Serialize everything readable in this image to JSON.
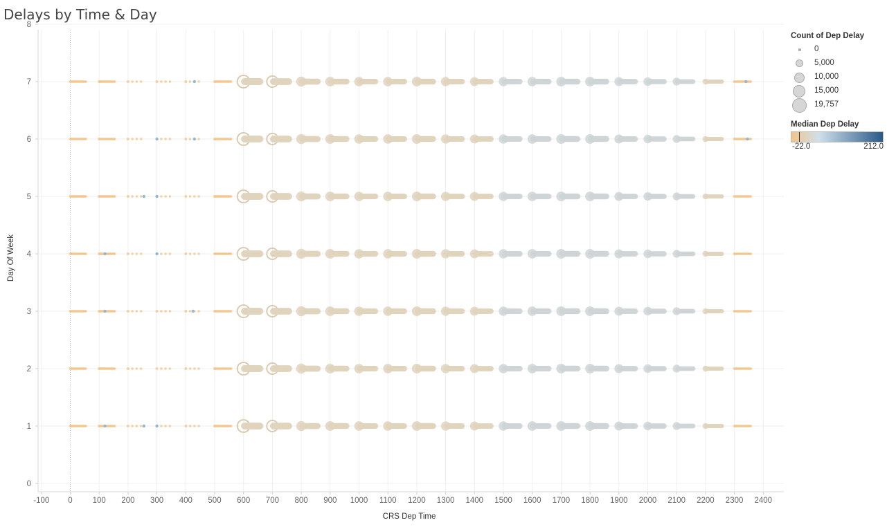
{
  "title": "Delays by Time & Day",
  "legend": {
    "size_title": "Count of Dep Delay",
    "size_items": [
      {
        "label": "0",
        "value": 0
      },
      {
        "label": "5,000",
        "value": 5000
      },
      {
        "label": "10,000",
        "value": 10000
      },
      {
        "label": "15,000",
        "value": 15000
      },
      {
        "label": "19,757",
        "value": 19757
      }
    ],
    "color_title": "Median Dep Delay",
    "color_min_label": "-22.0",
    "color_max_label": "212.0",
    "colors": {
      "low": "#f2c48a",
      "mid": "#cfe0ea",
      "high": "#2a5a8a",
      "dominant": "#e1d3bd"
    }
  },
  "chart_data": {
    "type": "scatter",
    "title": "Delays by Time & Day",
    "xlabel": "CRS Dep Time",
    "ylabel": "Day Of Week",
    "xlim": [
      -100,
      2400
    ],
    "ylim": [
      0,
      8
    ],
    "xticks": [
      "-100",
      "0",
      "100",
      "200",
      "300",
      "400",
      "500",
      "600",
      "700",
      "800",
      "900",
      "1000",
      "1100",
      "1200",
      "1300",
      "1400",
      "1500",
      "1600",
      "1700",
      "1800",
      "1900",
      "2000",
      "2100",
      "2200",
      "2300",
      "2400"
    ],
    "yticks": [
      "0",
      "1",
      "2",
      "3",
      "4",
      "5",
      "6",
      "7",
      "8"
    ],
    "days": [
      1,
      2,
      3,
      4,
      5,
      6,
      7
    ],
    "size_measure": "Count of Dep Delay",
    "color_measure": "Median Dep Delay",
    "size_range": [
      0,
      19757
    ],
    "color_range": [
      -22.0,
      212.0
    ],
    "hour_blocks": [
      {
        "hour": 0,
        "count": 150
      },
      {
        "hour": 1,
        "count": 80
      },
      {
        "hour": 2,
        "count": 40
      },
      {
        "hour": 3,
        "count": 20
      },
      {
        "hour": 4,
        "count": 120
      },
      {
        "hour": 5,
        "count": 2500
      },
      {
        "hour": 6,
        "count": 19757
      },
      {
        "hour": 7,
        "count": 16000
      },
      {
        "hour": 8,
        "count": 13000
      },
      {
        "hour": 9,
        "count": 12000
      },
      {
        "hour": 10,
        "count": 11500
      },
      {
        "hour": 11,
        "count": 11500
      },
      {
        "hour": 12,
        "count": 12000
      },
      {
        "hour": 13,
        "count": 11000
      },
      {
        "hour": 14,
        "count": 10500
      },
      {
        "hour": 15,
        "count": 11000
      },
      {
        "hour": 16,
        "count": 11500
      },
      {
        "hour": 17,
        "count": 12000
      },
      {
        "hour": 18,
        "count": 12000
      },
      {
        "hour": 19,
        "count": 10500
      },
      {
        "hour": 20,
        "count": 9500
      },
      {
        "hour": 21,
        "count": 8000
      },
      {
        "hour": 22,
        "count": 4500
      },
      {
        "hour": 23,
        "count": 2000
      }
    ],
    "late_block_color": "#cfd5d6",
    "blue_markers": [
      {
        "day": 1,
        "time": 120
      },
      {
        "day": 1,
        "time": 255
      },
      {
        "day": 1,
        "time": 300
      },
      {
        "day": 3,
        "time": 120
      },
      {
        "day": 3,
        "time": 425
      },
      {
        "day": 4,
        "time": 120
      },
      {
        "day": 4,
        "time": 300
      },
      {
        "day": 5,
        "time": 255
      },
      {
        "day": 5,
        "time": 300
      },
      {
        "day": 6,
        "time": 300
      },
      {
        "day": 6,
        "time": 430
      },
      {
        "day": 6,
        "time": 2345
      },
      {
        "day": 7,
        "time": 430
      },
      {
        "day": 7,
        "time": 2340
      }
    ]
  }
}
